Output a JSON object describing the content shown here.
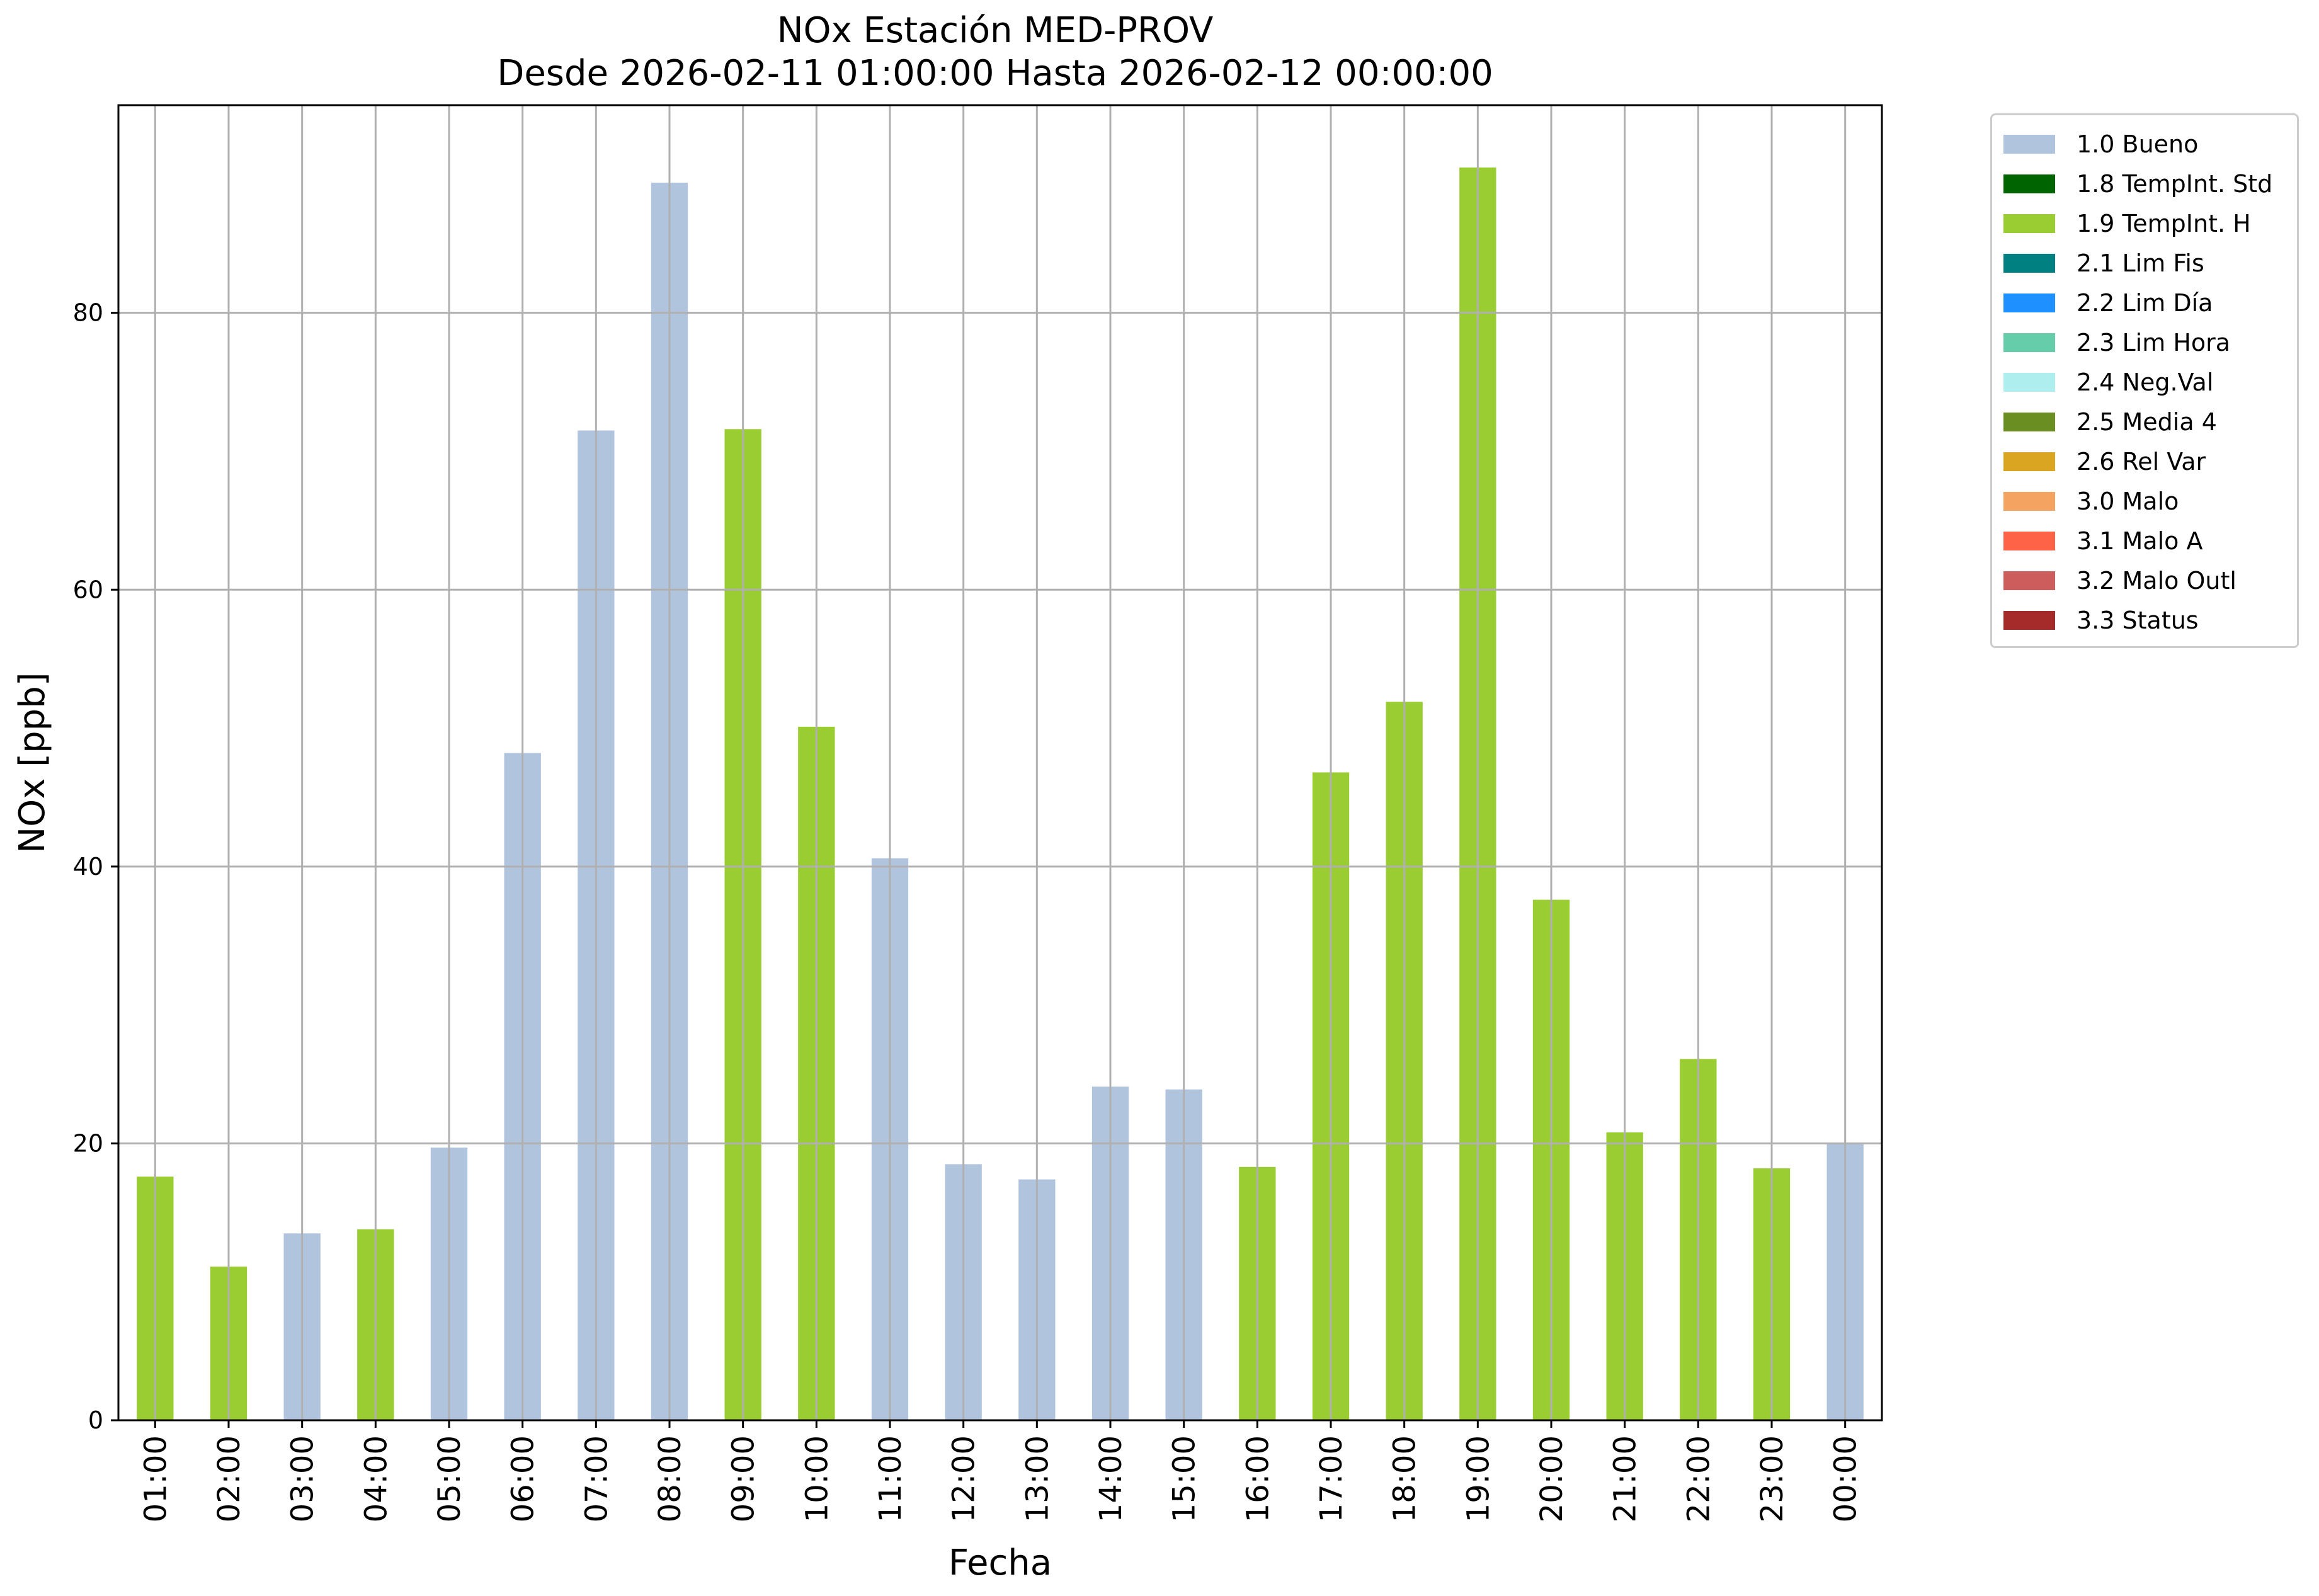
{
  "chart_data": {
    "type": "bar",
    "title": "NOx Estación MED-PROV",
    "subtitle": "Desde 2026-02-11 01:00:00 Hasta 2026-02-12 00:00:00",
    "xlabel": "Fecha",
    "ylabel": "NOx [ppb]",
    "ylim": [
      0,
      95
    ],
    "yticks": [
      0,
      20,
      40,
      60,
      80
    ],
    "grid": true,
    "legend_position": "outside right",
    "categories": [
      "01:00",
      "02:00",
      "03:00",
      "04:00",
      "05:00",
      "06:00",
      "07:00",
      "08:00",
      "09:00",
      "10:00",
      "11:00",
      "12:00",
      "13:00",
      "14:00",
      "15:00",
      "16:00",
      "17:00",
      "18:00",
      "19:00",
      "20:00",
      "21:00",
      "22:00",
      "23:00",
      "00:00"
    ],
    "values": [
      17.6,
      11.1,
      13.5,
      13.8,
      19.7,
      48.2,
      71.5,
      89.4,
      71.6,
      50.1,
      40.6,
      18.5,
      17.4,
      24.1,
      23.9,
      18.3,
      46.8,
      51.9,
      90.5,
      37.6,
      20.8,
      26.1,
      18.2,
      20.0
    ],
    "flags": [
      "1.9",
      "1.9",
      "1.0",
      "1.9",
      "1.0",
      "1.0",
      "1.0",
      "1.0",
      "1.9",
      "1.9",
      "1.0",
      "1.0",
      "1.0",
      "1.0",
      "1.0",
      "1.9",
      "1.9",
      "1.9",
      "1.9",
      "1.9",
      "1.9",
      "1.9",
      "1.9",
      "1.0"
    ],
    "legend": [
      {
        "code": "1.0",
        "label": "1.0 Bueno",
        "color": "#b0c4de"
      },
      {
        "code": "1.8",
        "label": "1.8 TempInt. Std",
        "color": "#006400"
      },
      {
        "code": "1.9",
        "label": "1.9 TempInt. H",
        "color": "#9acd32"
      },
      {
        "code": "2.1",
        "label": "2.1 Lim Fis",
        "color": "#008080"
      },
      {
        "code": "2.2",
        "label": "2.2 Lim Día",
        "color": "#1e90ff"
      },
      {
        "code": "2.3",
        "label": "2.3 Lim Hora",
        "color": "#66cdaa"
      },
      {
        "code": "2.4",
        "label": "2.4 Neg.Val",
        "color": "#afeeee"
      },
      {
        "code": "2.5",
        "label": "2.5 Media 4",
        "color": "#6b8e23"
      },
      {
        "code": "2.6",
        "label": "2.6 Rel Var",
        "color": "#daa520"
      },
      {
        "code": "3.0",
        "label": "3.0 Malo",
        "color": "#f4a460"
      },
      {
        "code": "3.1",
        "label": "3.1 Malo A",
        "color": "#ff6347"
      },
      {
        "code": "3.2",
        "label": "3.2 Malo Outl",
        "color": "#cd5c5c"
      },
      {
        "code": "3.3",
        "label": "3.3 Status",
        "color": "#a52a2a"
      }
    ]
  }
}
